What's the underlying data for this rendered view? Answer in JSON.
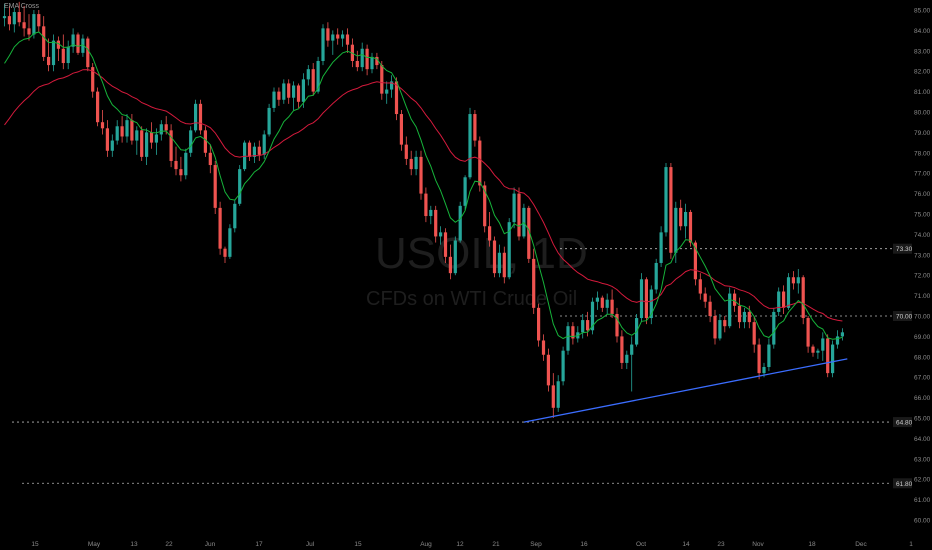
{
  "indicator_label": "EMA Cross",
  "watermark": {
    "symbol": "USOIL, 1D",
    "description": "CFDs on WTI Crude Oil"
  },
  "colors": {
    "background": "#000000",
    "up": "#26a69a",
    "down": "#ef5350",
    "ema_fast": "#16b33a",
    "ema_slow": "#d41a3c",
    "trendline": "#3b6dff",
    "level_line": "#b8b8b8",
    "axis_text": "#8a8a8a",
    "level_tag_bg": "#1a1a1a"
  },
  "chart_data": {
    "type": "candlestick",
    "x_tick_labels": [
      "15",
      "May",
      "13",
      "22",
      "Jun",
      "17",
      "Jul",
      "15",
      "Aug",
      "12",
      "21",
      "Sep",
      "16",
      "Oct",
      "14",
      "23",
      "Nov",
      "18",
      "Dec",
      "1"
    ],
    "y_tick_labels": [
      "85.00",
      "84.00",
      "83.00",
      "82.00",
      "81.00",
      "80.00",
      "79.00",
      "78.00",
      "77.00",
      "76.00",
      "75.00",
      "74.00",
      "73.00",
      "72.00",
      "71.00",
      "70.00",
      "69.00",
      "68.00",
      "67.00",
      "66.00",
      "65.00",
      "64.00",
      "63.00",
      "62.00",
      "61.00",
      "60.00"
    ],
    "ylim": [
      59.3,
      85.4
    ],
    "horizontal_levels": [
      {
        "label": "73.30",
        "value": 73.3
      },
      {
        "label": "70.00",
        "value": 70.0
      },
      {
        "label": "64.80",
        "value": 64.8
      },
      {
        "label": "61.80",
        "value": 61.8
      }
    ],
    "trendline": {
      "start": {
        "candle": 106,
        "price": 64.8
      },
      "end": {
        "candle": 172,
        "price": 67.9
      }
    },
    "candles": [
      [
        84.6,
        85.3,
        84.2,
        84.7
      ],
      [
        84.7,
        85.2,
        84.0,
        84.3
      ],
      [
        84.3,
        85.1,
        83.9,
        84.9
      ],
      [
        84.9,
        85.4,
        84.2,
        84.4
      ],
      [
        84.4,
        85.2,
        83.7,
        84.1
      ],
      [
        84.1,
        84.8,
        83.5,
        83.8
      ],
      [
        83.8,
        85.0,
        83.6,
        84.8
      ],
      [
        84.8,
        85.0,
        83.9,
        84.2
      ],
      [
        84.2,
        84.7,
        82.5,
        82.7
      ],
      [
        82.7,
        83.6,
        82.0,
        82.3
      ],
      [
        82.3,
        83.8,
        82.0,
        83.5
      ],
      [
        83.5,
        83.7,
        82.5,
        83.1
      ],
      [
        83.1,
        83.8,
        82.1,
        82.4
      ],
      [
        82.4,
        83.5,
        82.1,
        83.2
      ],
      [
        83.2,
        84.1,
        82.9,
        83.8
      ],
      [
        83.8,
        83.9,
        82.8,
        82.9
      ],
      [
        82.9,
        83.8,
        82.7,
        83.6
      ],
      [
        83.6,
        83.7,
        82.0,
        82.2
      ],
      [
        82.2,
        82.4,
        80.7,
        81.0
      ],
      [
        81.0,
        81.2,
        79.3,
        79.5
      ],
      [
        79.5,
        80.1,
        78.9,
        79.2
      ],
      [
        79.2,
        79.6,
        77.8,
        78.1
      ],
      [
        78.1,
        78.9,
        77.8,
        78.6
      ],
      [
        78.6,
        79.6,
        78.4,
        79.3
      ],
      [
        79.3,
        79.8,
        78.5,
        78.8
      ],
      [
        78.8,
        79.9,
        78.5,
        79.6
      ],
      [
        79.6,
        79.9,
        78.4,
        78.6
      ],
      [
        78.6,
        79.3,
        77.9,
        79.1
      ],
      [
        79.1,
        79.3,
        77.6,
        77.8
      ],
      [
        77.8,
        79.2,
        77.4,
        79.0
      ],
      [
        79.0,
        79.5,
        78.2,
        78.5
      ],
      [
        78.5,
        79.2,
        77.9,
        78.9
      ],
      [
        78.9,
        79.6,
        78.6,
        79.4
      ],
      [
        79.4,
        79.8,
        78.9,
        79.1
      ],
      [
        79.1,
        79.4,
        77.3,
        77.6
      ],
      [
        77.6,
        78.3,
        76.9,
        77.2
      ],
      [
        77.2,
        77.8,
        76.6,
        76.9
      ],
      [
        76.9,
        78.2,
        76.7,
        78.0
      ],
      [
        78.0,
        79.3,
        77.8,
        79.1
      ],
      [
        79.1,
        80.6,
        79.0,
        80.4
      ],
      [
        80.4,
        80.6,
        78.9,
        79.1
      ],
      [
        79.1,
        79.3,
        77.8,
        78.0
      ],
      [
        78.0,
        78.4,
        77.0,
        77.4
      ],
      [
        77.4,
        77.6,
        75.0,
        75.3
      ],
      [
        75.3,
        75.6,
        73.0,
        73.3
      ],
      [
        73.3,
        73.4,
        72.6,
        72.9
      ],
      [
        72.9,
        74.5,
        72.8,
        74.3
      ],
      [
        74.3,
        75.7,
        74.1,
        75.5
      ],
      [
        75.5,
        77.4,
        75.4,
        77.2
      ],
      [
        77.2,
        78.6,
        77.1,
        78.5
      ],
      [
        78.5,
        78.6,
        77.6,
        77.8
      ],
      [
        77.8,
        78.5,
        77.5,
        78.3
      ],
      [
        78.3,
        78.6,
        77.6,
        77.9
      ],
      [
        77.9,
        79.1,
        77.7,
        78.9
      ],
      [
        78.9,
        80.4,
        78.8,
        80.2
      ],
      [
        80.2,
        81.2,
        80.0,
        81.0
      ],
      [
        81.0,
        81.2,
        80.3,
        80.6
      ],
      [
        80.6,
        81.6,
        80.4,
        81.4
      ],
      [
        81.4,
        81.6,
        80.4,
        80.7
      ],
      [
        80.7,
        81.5,
        80.1,
        81.3
      ],
      [
        81.3,
        81.4,
        80.2,
        80.5
      ],
      [
        80.5,
        81.9,
        80.2,
        81.6
      ],
      [
        81.6,
        82.3,
        81.3,
        82.1
      ],
      [
        82.1,
        82.4,
        80.8,
        81.0
      ],
      [
        81.0,
        82.7,
        80.9,
        82.5
      ],
      [
        82.5,
        84.3,
        82.3,
        84.1
      ],
      [
        84.1,
        84.4,
        83.2,
        83.5
      ],
      [
        83.5,
        84.0,
        82.8,
        83.8
      ],
      [
        83.8,
        84.1,
        83.3,
        83.6
      ],
      [
        83.6,
        84.0,
        83.2,
        83.8
      ],
      [
        83.8,
        84.1,
        82.9,
        83.3
      ],
      [
        83.3,
        83.6,
        82.2,
        82.5
      ],
      [
        82.5,
        83.0,
        82.0,
        82.2
      ],
      [
        82.2,
        83.4,
        82.0,
        83.1
      ],
      [
        83.1,
        83.3,
        81.8,
        82.1
      ],
      [
        82.1,
        82.9,
        81.9,
        82.7
      ],
      [
        82.7,
        82.9,
        82.1,
        82.3
      ],
      [
        82.3,
        82.5,
        80.6,
        80.9
      ],
      [
        80.9,
        81.5,
        80.4,
        81.1
      ],
      [
        81.1,
        81.8,
        80.7,
        81.5
      ],
      [
        81.5,
        81.7,
        79.6,
        79.9
      ],
      [
        79.9,
        80.1,
        78.1,
        78.4
      ],
      [
        78.4,
        78.8,
        77.4,
        77.7
      ],
      [
        77.7,
        78.1,
        76.9,
        77.2
      ],
      [
        77.2,
        78.1,
        76.9,
        77.8
      ],
      [
        77.8,
        78.1,
        75.7,
        76.0
      ],
      [
        76.0,
        76.3,
        74.6,
        74.9
      ],
      [
        74.9,
        75.4,
        74.5,
        75.2
      ],
      [
        75.2,
        75.4,
        73.6,
        73.9
      ],
      [
        73.9,
        74.4,
        73.5,
        74.1
      ],
      [
        74.1,
        74.3,
        72.6,
        72.9
      ],
      [
        72.9,
        73.5,
        71.8,
        72.1
      ],
      [
        72.1,
        73.9,
        72.0,
        73.7
      ],
      [
        73.7,
        75.6,
        73.6,
        75.4
      ],
      [
        75.4,
        76.9,
        75.2,
        76.8
      ],
      [
        76.8,
        80.2,
        76.7,
        79.9
      ],
      [
        79.9,
        80.1,
        78.3,
        78.6
      ],
      [
        78.6,
        78.8,
        76.1,
        76.4
      ],
      [
        76.4,
        76.6,
        74.1,
        74.4
      ],
      [
        74.4,
        75.1,
        73.4,
        73.7
      ],
      [
        73.7,
        73.9,
        71.9,
        72.1
      ],
      [
        72.1,
        73.5,
        71.9,
        73.1
      ],
      [
        73.1,
        73.4,
        71.6,
        71.9
      ],
      [
        71.9,
        74.8,
        71.8,
        74.6
      ],
      [
        74.6,
        76.3,
        74.3,
        76.0
      ],
      [
        76.0,
        76.3,
        73.7,
        73.9
      ],
      [
        73.9,
        75.5,
        73.8,
        75.3
      ],
      [
        75.3,
        75.4,
        72.6,
        72.8
      ],
      [
        72.8,
        73.3,
        70.1,
        70.4
      ],
      [
        70.4,
        70.6,
        68.5,
        68.8
      ],
      [
        68.8,
        69.1,
        67.8,
        68.1
      ],
      [
        68.1,
        68.4,
        66.3,
        66.6
      ],
      [
        66.6,
        67.2,
        65.0,
        65.5
      ],
      [
        65.5,
        67.1,
        65.3,
        66.8
      ],
      [
        66.8,
        68.5,
        66.6,
        68.3
      ],
      [
        68.3,
        69.7,
        68.1,
        69.5
      ],
      [
        69.5,
        69.7,
        68.6,
        68.9
      ],
      [
        68.9,
        69.5,
        68.7,
        69.2
      ],
      [
        69.2,
        70.1,
        68.9,
        69.8
      ],
      [
        69.8,
        70.2,
        69.0,
        69.3
      ],
      [
        69.3,
        70.9,
        69.1,
        70.7
      ],
      [
        70.7,
        71.2,
        70.3,
        70.9
      ],
      [
        70.9,
        71.0,
        70.2,
        70.4
      ],
      [
        70.4,
        71.1,
        70.1,
        70.8
      ],
      [
        70.8,
        71.3,
        69.9,
        70.1
      ],
      [
        70.1,
        70.4,
        68.7,
        69.0
      ],
      [
        69.0,
        69.3,
        67.4,
        67.7
      ],
      [
        67.7,
        68.3,
        67.4,
        68.1
      ],
      [
        68.1,
        69.0,
        66.3,
        68.6
      ],
      [
        68.6,
        70.1,
        68.5,
        69.9
      ],
      [
        69.9,
        72.1,
        69.7,
        71.8
      ],
      [
        71.8,
        71.9,
        69.6,
        69.9
      ],
      [
        69.9,
        71.5,
        69.6,
        71.3
      ],
      [
        71.3,
        72.8,
        71.1,
        72.6
      ],
      [
        72.6,
        74.4,
        72.4,
        74.1
      ],
      [
        74.1,
        77.5,
        73.9,
        77.3
      ],
      [
        77.3,
        77.5,
        72.8,
        73.1
      ],
      [
        73.1,
        75.6,
        72.6,
        75.3
      ],
      [
        75.3,
        75.7,
        74.2,
        74.4
      ],
      [
        74.4,
        75.5,
        73.8,
        75.1
      ],
      [
        75.1,
        75.2,
        73.4,
        73.6
      ],
      [
        73.6,
        73.7,
        71.5,
        71.8
      ],
      [
        71.8,
        72.1,
        70.8,
        71.1
      ],
      [
        71.1,
        71.4,
        70.4,
        70.7
      ],
      [
        70.7,
        71.0,
        69.7,
        70.0
      ],
      [
        70.0,
        70.3,
        68.6,
        68.9
      ],
      [
        68.9,
        70.1,
        68.8,
        69.8
      ],
      [
        69.8,
        70.0,
        69.2,
        69.5
      ],
      [
        69.5,
        71.4,
        69.4,
        71.1
      ],
      [
        71.1,
        71.3,
        70.2,
        70.5
      ],
      [
        70.5,
        70.9,
        69.4,
        69.7
      ],
      [
        69.7,
        70.4,
        69.4,
        70.2
      ],
      [
        70.2,
        70.5,
        69.4,
        69.7
      ],
      [
        69.7,
        70.0,
        68.2,
        68.6
      ],
      [
        68.6,
        68.9,
        66.9,
        67.2
      ],
      [
        67.2,
        67.7,
        67.0,
        67.5
      ],
      [
        67.5,
        68.9,
        67.3,
        68.6
      ],
      [
        68.6,
        70.4,
        68.4,
        70.2
      ],
      [
        70.2,
        71.4,
        70.0,
        71.2
      ],
      [
        71.2,
        71.5,
        70.1,
        70.4
      ],
      [
        70.4,
        72.1,
        70.3,
        71.9
      ],
      [
        71.9,
        72.2,
        71.3,
        71.6
      ],
      [
        71.6,
        72.3,
        71.1,
        71.9
      ],
      [
        71.9,
        72.0,
        69.6,
        69.9
      ],
      [
        69.9,
        70.0,
        68.2,
        68.5
      ],
      [
        68.5,
        68.6,
        68.0,
        68.2
      ],
      [
        68.2,
        68.4,
        67.9,
        68.3
      ],
      [
        68.3,
        69.2,
        67.8,
        68.9
      ],
      [
        68.9,
        69.1,
        67.0,
        67.2
      ],
      [
        67.2,
        68.8,
        67.0,
        68.6
      ],
      [
        68.6,
        69.3,
        68.4,
        69.0
      ],
      [
        69.0,
        69.4,
        68.8,
        69.2
      ]
    ],
    "grid": false,
    "legend": "none"
  }
}
